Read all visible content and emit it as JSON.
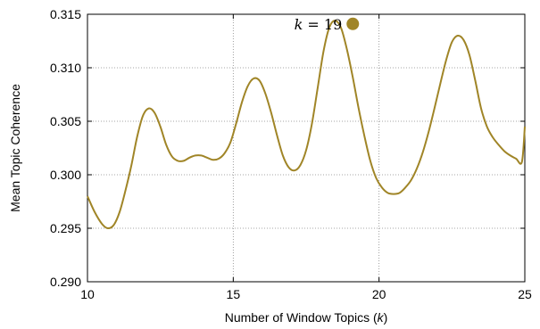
{
  "chart_data": {
    "type": "line",
    "title": "",
    "xlabel_prefix": "Number of Window Topics (",
    "xlabel_var": "k",
    "xlabel_suffix": ")",
    "ylabel": "Mean Topic Coherence",
    "xlim": [
      10,
      25
    ],
    "ylim": [
      0.29,
      0.315
    ],
    "x_ticks": [
      10,
      15,
      20,
      25
    ],
    "y_ticks": [
      0.29,
      0.295,
      0.3,
      0.305,
      0.31,
      0.315
    ],
    "x_tick_labels": [
      "10",
      "15",
      "20",
      "25"
    ],
    "y_tick_labels": [
      "0.290",
      "0.295",
      "0.300",
      "0.305",
      "0.310",
      "0.315"
    ],
    "grid": true,
    "line_color": "#a08527",
    "series": [
      {
        "x": [
          10.0,
          10.25,
          10.5,
          10.7,
          10.9,
          11.1,
          11.3,
          11.5,
          11.7,
          11.9,
          12.1,
          12.3,
          12.5,
          12.7,
          12.9,
          13.1,
          13.3,
          13.5,
          13.7,
          13.9,
          14.1,
          14.3,
          14.5,
          14.7,
          14.9,
          15.1,
          15.3,
          15.5,
          15.7,
          15.9,
          16.1,
          16.3,
          16.5,
          16.7,
          16.9,
          17.1,
          17.3,
          17.5,
          17.7,
          17.9,
          18.1,
          18.3,
          18.5,
          18.7,
          18.9,
          19.1,
          19.3,
          19.5,
          19.7,
          19.9,
          20.1,
          20.3,
          20.5,
          20.7,
          20.9,
          21.1,
          21.3,
          21.5,
          21.7,
          21.9,
          22.1,
          22.3,
          22.5,
          22.7,
          22.9,
          23.1,
          23.3,
          23.5,
          23.7,
          23.9,
          24.1,
          24.3,
          24.5,
          24.7,
          24.9,
          25.0
        ],
        "y": [
          0.298,
          0.2965,
          0.2954,
          0.295,
          0.2953,
          0.2965,
          0.2985,
          0.3008,
          0.3035,
          0.3055,
          0.3062,
          0.3058,
          0.3045,
          0.3028,
          0.3017,
          0.3013,
          0.3013,
          0.3016,
          0.3018,
          0.3018,
          0.3016,
          0.3014,
          0.3015,
          0.302,
          0.303,
          0.3048,
          0.3068,
          0.3083,
          0.309,
          0.3088,
          0.3076,
          0.3058,
          0.3037,
          0.3018,
          0.3007,
          0.3004,
          0.3009,
          0.3023,
          0.3048,
          0.3082,
          0.3116,
          0.3138,
          0.3144,
          0.3137,
          0.3117,
          0.3091,
          0.3062,
          0.3036,
          0.3013,
          0.2997,
          0.2988,
          0.2983,
          0.2982,
          0.2983,
          0.2988,
          0.2995,
          0.3006,
          0.3021,
          0.304,
          0.3062,
          0.3085,
          0.3107,
          0.3124,
          0.313,
          0.3126,
          0.3112,
          0.3088,
          0.3062,
          0.3045,
          0.3035,
          0.3028,
          0.3022,
          0.3018,
          0.3015,
          0.3012,
          0.3045
        ]
      }
    ],
    "annotation": {
      "text_var": "k",
      "text_rest": " = 19",
      "x": 19.1,
      "y": 0.3141
    }
  }
}
